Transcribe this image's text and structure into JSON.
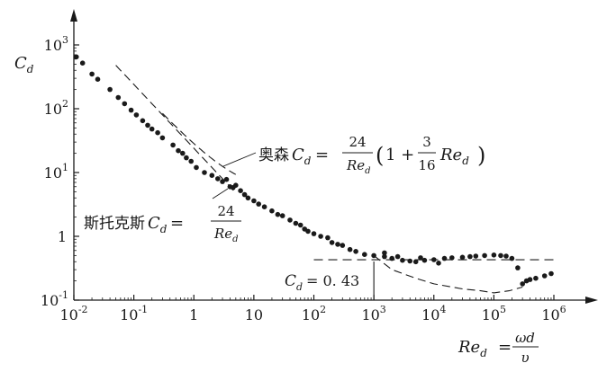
{
  "chart_data": {
    "type": "scatter",
    "x_scale": "log",
    "y_scale": "log",
    "xlim": [
      0.01,
      1000000
    ],
    "ylim": [
      0.1,
      1000
    ],
    "grid": false,
    "x_ticks": [
      {
        "value": 0.01,
        "base": "10",
        "exp": "-2"
      },
      {
        "value": 0.1,
        "base": "10",
        "exp": "-1"
      },
      {
        "value": 1,
        "base": "1",
        "exp": ""
      },
      {
        "value": 10,
        "base": "10",
        "exp": ""
      },
      {
        "value": 100,
        "base": "10",
        "exp": "2"
      },
      {
        "value": 1000,
        "base": "10",
        "exp": "3"
      },
      {
        "value": 10000,
        "base": "10",
        "exp": "4"
      },
      {
        "value": 100000,
        "base": "10",
        "exp": "5"
      },
      {
        "value": 1000000,
        "base": "10",
        "exp": "6"
      }
    ],
    "y_ticks": [
      {
        "value": 0.1,
        "base": "10",
        "exp": "-1"
      },
      {
        "value": 1,
        "base": "1",
        "exp": ""
      },
      {
        "value": 10,
        "base": "10",
        "exp": "1"
      },
      {
        "value": 100,
        "base": "10",
        "exp": "2"
      },
      {
        "value": 1000,
        "base": "10",
        "exp": "3"
      }
    ],
    "ylabel": {
      "main": "C",
      "sub": "d"
    },
    "xlabel": {
      "main": "Re",
      "sub": "d",
      "eq": "=",
      "num": "ωd",
      "den": "υ"
    },
    "annotations": {
      "oseen": {
        "name": "奥森",
        "lhs_main": "C",
        "lhs_sub": "d",
        "eq": "=",
        "frac_num": "24",
        "frac_den_main": "Re",
        "frac_den_sub": "d",
        "paren_open": "(",
        "one_plus": "1 + ",
        "frac2_num": "3",
        "frac2_den": "16",
        "tail_main": "Re",
        "tail_sub": "d",
        "paren_close": ")"
      },
      "stokes": {
        "name": "斯托克斯",
        "lhs_main": "C",
        "lhs_sub": "d",
        "eq": "=",
        "frac_num": "24",
        "frac_den_main": "Re",
        "frac_den_sub": "d"
      },
      "cd_const": {
        "lhs_main": "C",
        "lhs_sub": "d",
        "eq": "= 0. 43",
        "value": 0.43
      }
    },
    "points": [
      [
        0.011,
        650
      ],
      [
        0.014,
        520
      ],
      [
        0.02,
        350
      ],
      [
        0.025,
        290
      ],
      [
        0.04,
        200
      ],
      [
        0.055,
        150
      ],
      [
        0.07,
        120
      ],
      [
        0.09,
        95
      ],
      [
        0.11,
        80
      ],
      [
        0.14,
        65
      ],
      [
        0.17,
        55
      ],
      [
        0.2,
        48
      ],
      [
        0.25,
        42
      ],
      [
        0.3,
        35
      ],
      [
        0.45,
        27
      ],
      [
        0.55,
        22
      ],
      [
        0.65,
        20
      ],
      [
        0.75,
        17
      ],
      [
        0.9,
        15
      ],
      [
        1.1,
        12
      ],
      [
        1.5,
        10
      ],
      [
        2,
        9
      ],
      [
        2.5,
        8
      ],
      [
        3,
        7.2
      ],
      [
        3.5,
        7.8
      ],
      [
        4,
        6
      ],
      [
        4.5,
        5.8
      ],
      [
        5,
        6.3
      ],
      [
        6,
        5.2
      ],
      [
        7,
        4.5
      ],
      [
        8,
        4
      ],
      [
        10,
        3.6
      ],
      [
        12,
        3.2
      ],
      [
        15,
        2.9
      ],
      [
        20,
        2.5
      ],
      [
        25,
        2.2
      ],
      [
        30,
        2.1
      ],
      [
        40,
        1.8
      ],
      [
        50,
        1.6
      ],
      [
        60,
        1.5
      ],
      [
        70,
        1.3
      ],
      [
        80,
        1.2
      ],
      [
        100,
        1.1
      ],
      [
        130,
        1.0
      ],
      [
        170,
        0.95
      ],
      [
        200,
        0.8
      ],
      [
        250,
        0.75
      ],
      [
        300,
        0.72
      ],
      [
        400,
        0.62
      ],
      [
        500,
        0.58
      ],
      [
        700,
        0.52
      ],
      [
        1000,
        0.5
      ],
      [
        1500,
        0.48
      ],
      [
        2000,
        0.45
      ],
      [
        3000,
        0.42
      ],
      [
        4000,
        0.41
      ],
      [
        5000,
        0.4
      ],
      [
        7000,
        0.42
      ],
      [
        10000,
        0.43
      ],
      [
        15000,
        0.45
      ],
      [
        20000,
        0.46
      ],
      [
        30000,
        0.47
      ],
      [
        40000,
        0.48
      ],
      [
        50000,
        0.49
      ],
      [
        70000,
        0.5
      ],
      [
        100000,
        0.51
      ],
      [
        130000,
        0.5
      ],
      [
        160000,
        0.49
      ],
      [
        200000,
        0.45
      ],
      [
        250000,
        0.32
      ],
      [
        300000,
        0.18
      ],
      [
        350000,
        0.2
      ],
      [
        400000,
        0.21
      ],
      [
        500000,
        0.22
      ],
      [
        700000,
        0.24
      ],
      [
        900000,
        0.26
      ],
      [
        1500,
        0.55
      ],
      [
        2500,
        0.48
      ],
      [
        6000,
        0.46
      ],
      [
        12000,
        0.38
      ]
    ],
    "stokes_curve": {
      "formula": "24/Re",
      "x_range": [
        0.05,
        5
      ]
    },
    "oseen_curve": {
      "formula": "24/Re*(1+3/16*Re)",
      "x_range": [
        0.3,
        5
      ]
    },
    "measured_curve": [
      [
        1000,
        0.5
      ],
      [
        2000,
        0.3
      ],
      [
        5000,
        0.22
      ],
      [
        10000,
        0.18
      ],
      [
        30000,
        0.15
      ],
      [
        60000,
        0.14
      ],
      [
        100000,
        0.13
      ],
      [
        180000,
        0.14
      ],
      [
        300000,
        0.16
      ]
    ]
  }
}
